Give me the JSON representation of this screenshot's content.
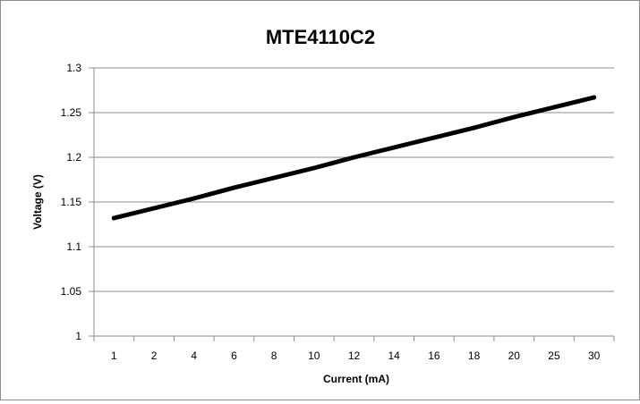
{
  "chart_data": {
    "type": "line",
    "title": "MTE4110C2",
    "xlabel": "Current (mA)",
    "ylabel": "Voltage (V)",
    "categories": [
      "1",
      "2",
      "4",
      "6",
      "8",
      "10",
      "12",
      "14",
      "16",
      "18",
      "20",
      "25",
      "30"
    ],
    "y_ticks": [
      "1",
      "1.05",
      "1.1",
      "1.15",
      "1.2",
      "1.25",
      "1.3"
    ],
    "ylim": [
      1,
      1.3
    ],
    "grid": "horizontal",
    "legend": "none",
    "series": [
      {
        "values": [
          1.132,
          1.143,
          1.154,
          1.166,
          1.177,
          1.188,
          1.2,
          1.211,
          1.222,
          1.233,
          1.245,
          1.256,
          1.267
        ],
        "color": "#000000"
      }
    ]
  }
}
